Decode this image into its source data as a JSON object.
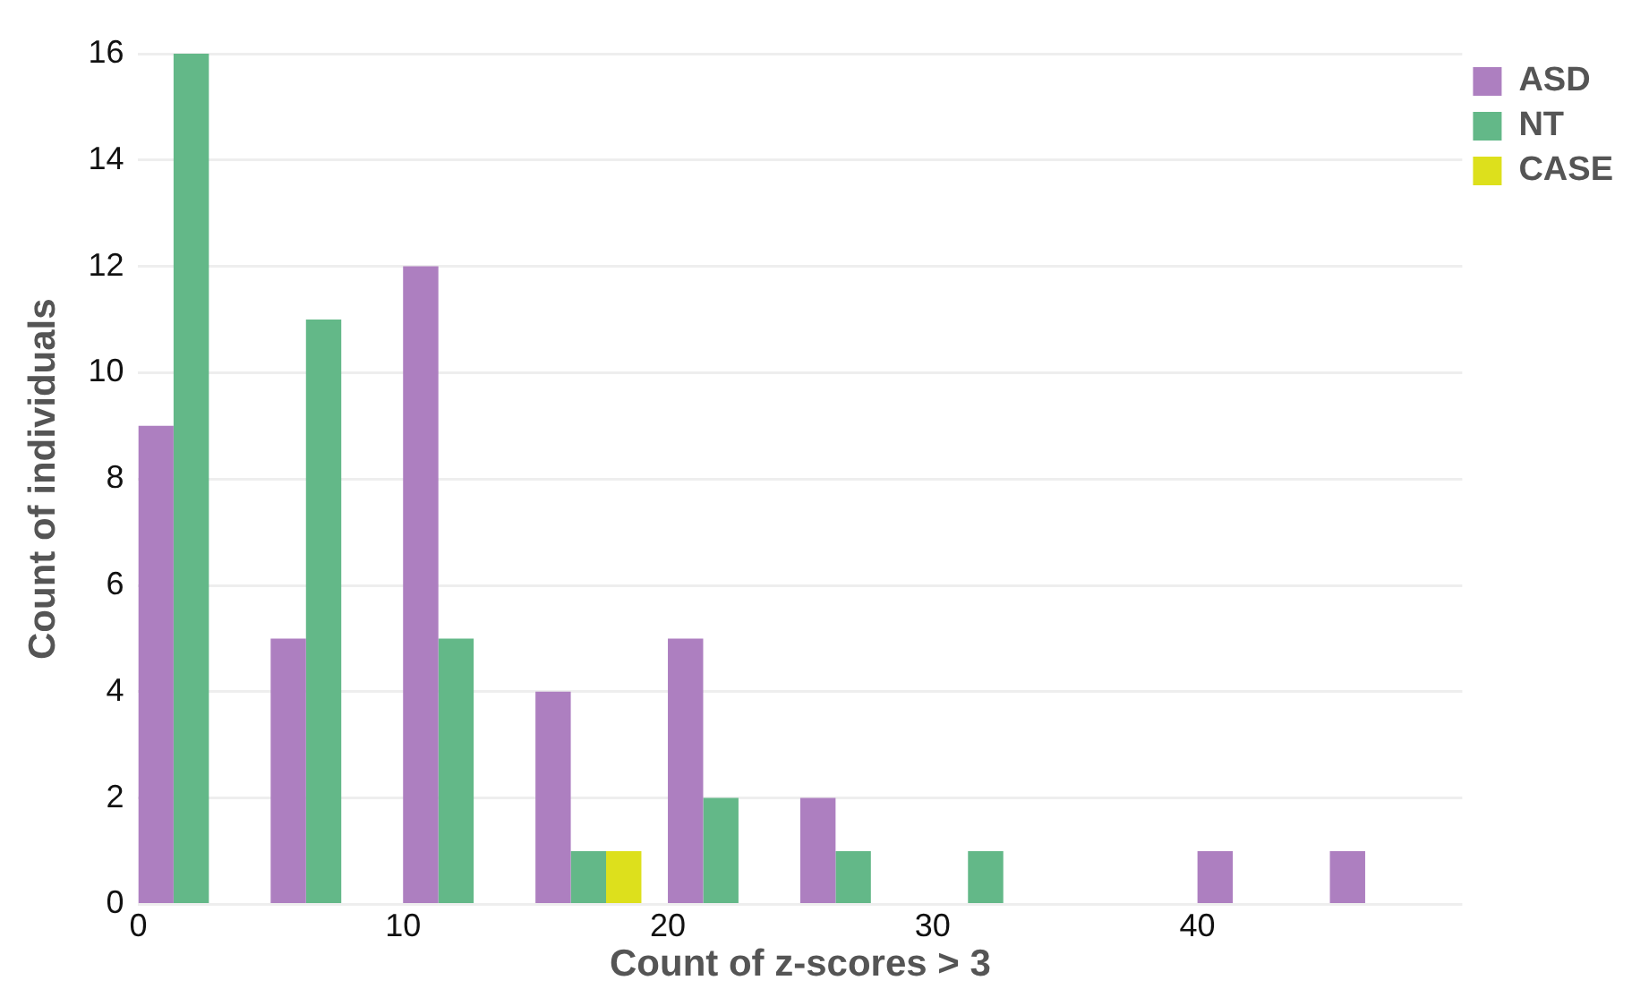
{
  "chart_data": {
    "type": "histogram",
    "xlabel": "Count of z-scores > 3",
    "ylabel": "Count of individuals",
    "bins": [
      0,
      5,
      10,
      15,
      20,
      25,
      30,
      35,
      40,
      45,
      50
    ],
    "series": [
      {
        "name": "ASD",
        "color": "#ad7fc0",
        "values": [
          9,
          5,
          12,
          4,
          5,
          2,
          0,
          0,
          1,
          1
        ]
      },
      {
        "name": "NT",
        "color": "#63b888",
        "values": [
          16,
          11,
          5,
          1,
          2,
          1,
          1,
          0,
          0,
          0
        ]
      },
      {
        "name": "CASE",
        "color": "#dde01c",
        "values": [
          0,
          0,
          0,
          1,
          0,
          0,
          0,
          0,
          0,
          0
        ]
      }
    ],
    "xlim": [
      0,
      50
    ],
    "xticks": [
      0,
      10,
      20,
      30,
      40
    ],
    "ylim": [
      0,
      16
    ],
    "yticks": [
      0,
      2,
      4,
      6,
      8,
      10,
      12,
      14,
      16
    ],
    "grid": "y",
    "legend": "top right"
  }
}
